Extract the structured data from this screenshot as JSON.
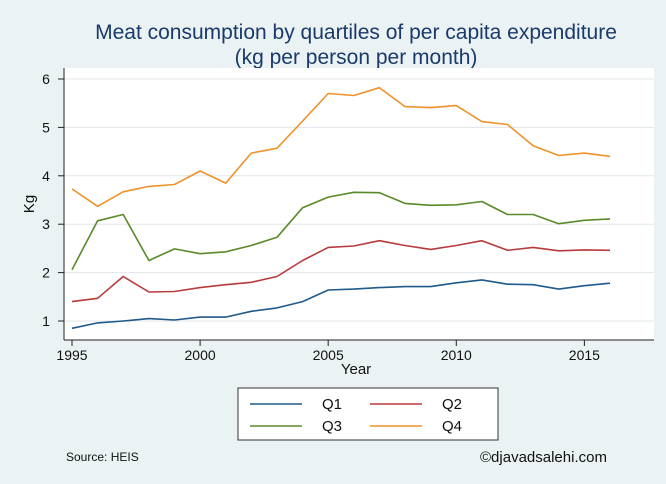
{
  "chart_data": {
    "type": "line",
    "title_line1": "Meat consumption by quartiles of per capita expenditure",
    "title_line2": "(kg per person per month)",
    "xlabel": "Year",
    "ylabel": "Kg",
    "xlim": [
      1995,
      2016
    ],
    "ylim": [
      0.8,
      6.2
    ],
    "xticks": [
      1995,
      2000,
      2005,
      2010,
      2015
    ],
    "yticks": [
      1,
      2,
      3,
      4,
      5,
      6
    ],
    "grid": true,
    "legend_position": "bottom",
    "x": [
      1995,
      1996,
      1997,
      1998,
      1999,
      2000,
      2001,
      2002,
      2003,
      2004,
      2005,
      2006,
      2007,
      2008,
      2009,
      2010,
      2011,
      2012,
      2013,
      2014,
      2015,
      2016
    ],
    "series": [
      {
        "name": "Q1",
        "color": "#1f5a8a",
        "values": [
          0.85,
          0.96,
          1.0,
          1.05,
          1.02,
          1.08,
          1.08,
          1.2,
          1.27,
          1.4,
          1.64,
          1.66,
          1.69,
          1.71,
          1.71,
          1.79,
          1.85,
          1.76,
          1.75,
          1.66,
          1.73,
          1.78
        ]
      },
      {
        "name": "Q2",
        "color": "#b83a3a",
        "values": [
          1.4,
          1.47,
          1.92,
          1.6,
          1.61,
          1.69,
          1.75,
          1.8,
          1.92,
          2.25,
          2.52,
          2.55,
          2.66,
          2.56,
          2.48,
          2.56,
          2.66,
          2.46,
          2.52,
          2.45,
          2.47,
          2.46
        ]
      },
      {
        "name": "Q3",
        "color": "#5a8a2a",
        "values": [
          2.06,
          3.07,
          3.2,
          2.25,
          2.49,
          2.39,
          2.43,
          2.56,
          2.73,
          3.34,
          3.56,
          3.66,
          3.65,
          3.43,
          3.39,
          3.4,
          3.47,
          3.2,
          3.2,
          3.01,
          3.08,
          3.11
        ]
      },
      {
        "name": "Q4",
        "color": "#f0922a",
        "values": [
          3.73,
          3.37,
          3.67,
          3.78,
          3.82,
          4.1,
          3.85,
          4.47,
          4.57,
          5.13,
          5.7,
          5.66,
          5.82,
          5.43,
          5.41,
          5.45,
          5.12,
          5.06,
          4.62,
          4.42,
          4.47,
          4.4
        ]
      }
    ],
    "source_note": "Source: HEIS",
    "credit": "©djavadsalehi.com"
  }
}
